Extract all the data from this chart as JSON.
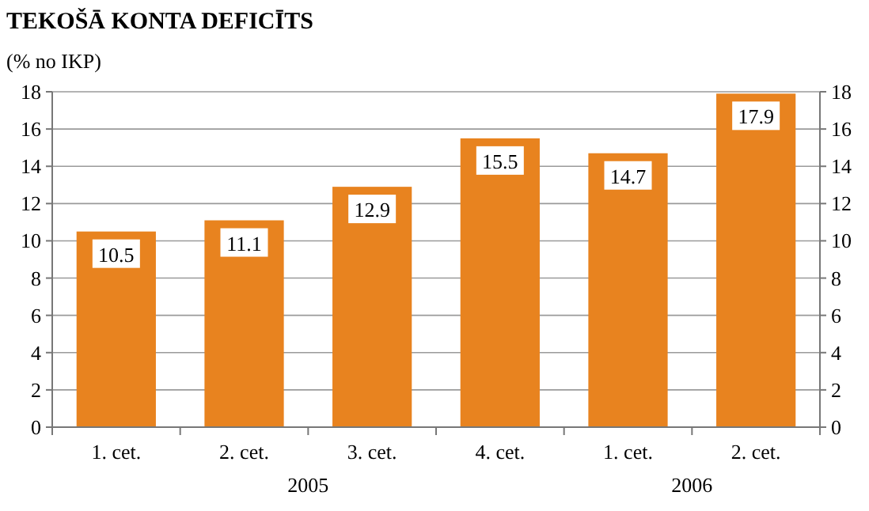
{
  "chart_data": {
    "type": "bar",
    "title": "TEKOŠĀ KONTA DEFICĪTS",
    "subtitle": "(% no IKP)",
    "categories": [
      "1. cet.",
      "2. cet.",
      "3. cet.",
      "4. cet.",
      "1. cet.",
      "2. cet."
    ],
    "values": [
      10.5,
      11.1,
      12.9,
      15.5,
      14.7,
      17.9
    ],
    "color": "#e8831f",
    "ylim": [
      0,
      18
    ],
    "yticks": [
      0,
      2,
      4,
      6,
      8,
      10,
      12,
      14,
      16,
      18
    ],
    "y2lim": [
      0,
      18
    ],
    "y2ticks": [
      0,
      2,
      4,
      6,
      8,
      10,
      12,
      14,
      16,
      18
    ],
    "grid": "y",
    "data_labels": true,
    "annotations": [
      "2005",
      "2006"
    ]
  }
}
